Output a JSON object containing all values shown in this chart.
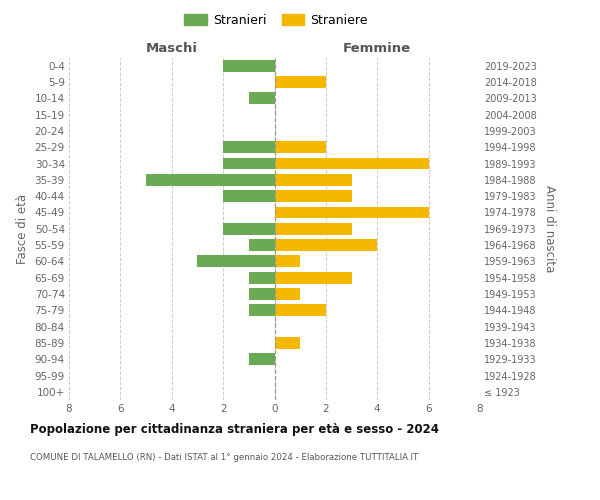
{
  "age_groups": [
    "100+",
    "95-99",
    "90-94",
    "85-89",
    "80-84",
    "75-79",
    "70-74",
    "65-69",
    "60-64",
    "55-59",
    "50-54",
    "45-49",
    "40-44",
    "35-39",
    "30-34",
    "25-29",
    "20-24",
    "15-19",
    "10-14",
    "5-9",
    "0-4"
  ],
  "birth_years": [
    "≤ 1923",
    "1924-1928",
    "1929-1933",
    "1934-1938",
    "1939-1943",
    "1944-1948",
    "1949-1953",
    "1954-1958",
    "1959-1963",
    "1964-1968",
    "1969-1973",
    "1974-1978",
    "1979-1983",
    "1984-1988",
    "1989-1993",
    "1994-1998",
    "1999-2003",
    "2004-2008",
    "2009-2013",
    "2014-2018",
    "2019-2023"
  ],
  "males": [
    0,
    0,
    1,
    0,
    0,
    1,
    1,
    1,
    3,
    1,
    2,
    0,
    2,
    5,
    2,
    2,
    0,
    0,
    1,
    0,
    2
  ],
  "females": [
    0,
    0,
    0,
    1,
    0,
    2,
    1,
    3,
    1,
    4,
    3,
    6,
    3,
    3,
    6,
    2,
    0,
    0,
    0,
    2,
    0
  ],
  "male_color": "#6aaa54",
  "female_color": "#f5b800",
  "background_color": "#ffffff",
  "grid_color": "#cccccc",
  "title": "Popolazione per cittadinanza straniera per età e sesso - 2024",
  "subtitle": "COMUNE DI TALAMELLO (RN) - Dati ISTAT al 1° gennaio 2024 - Elaborazione TUTTITALIA.IT",
  "xlabel_left": "Maschi",
  "xlabel_right": "Femmine",
  "ylabel_left": "Fasce di età",
  "ylabel_right": "Anni di nascita",
  "legend_stranieri": "Stranieri",
  "legend_straniere": "Straniere",
  "xlim": 8
}
